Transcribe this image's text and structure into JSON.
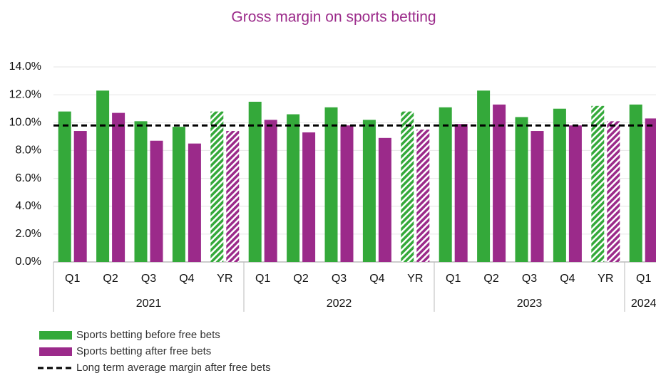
{
  "chart_data": {
    "type": "bar",
    "title": "Gross margin on sports betting",
    "title_color": "#9b2a8a",
    "groups": [
      {
        "name": "2021",
        "categories": [
          "Q1",
          "Q2",
          "Q3",
          "Q4",
          "YR"
        ]
      },
      {
        "name": "2022",
        "categories": [
          "Q1",
          "Q2",
          "Q3",
          "Q4",
          "YR"
        ]
      },
      {
        "name": "2023",
        "categories": [
          "Q1",
          "Q2",
          "Q3",
          "Q4",
          "YR"
        ]
      },
      {
        "name": "2024",
        "categories": [
          "Q1"
        ]
      }
    ],
    "hatched_category": "YR",
    "series": [
      {
        "name": "Sports betting before free bets",
        "color": "#34a93a",
        "values": [
          10.8,
          12.3,
          10.1,
          9.7,
          10.8,
          11.5,
          10.6,
          11.1,
          10.2,
          10.8,
          11.1,
          12.3,
          10.4,
          11.0,
          11.2,
          11.3
        ]
      },
      {
        "name": "Sports betting after free bets",
        "color": "#9b2a8a",
        "values": [
          9.4,
          10.7,
          8.7,
          8.5,
          9.4,
          10.2,
          9.3,
          9.8,
          8.9,
          9.5,
          9.9,
          11.3,
          9.4,
          9.8,
          10.1,
          10.3
        ]
      }
    ],
    "reference_line": {
      "name": "Long term average margin after free bets",
      "value": 9.8,
      "color": "#000000",
      "dashed": true
    },
    "ylim": [
      0,
      14
    ],
    "yticks": [
      {
        "value": 0,
        "label": "0.0%"
      },
      {
        "value": 2,
        "label": "2.0%"
      },
      {
        "value": 4,
        "label": "4.0%"
      },
      {
        "value": 6,
        "label": "6.0%"
      },
      {
        "value": 8,
        "label": "8.0%"
      },
      {
        "value": 10,
        "label": "10.0%"
      },
      {
        "value": 12,
        "label": "12.0%"
      },
      {
        "value": 14,
        "label": "14.0%"
      }
    ],
    "grid": true,
    "legend_position": "bottom-left"
  }
}
